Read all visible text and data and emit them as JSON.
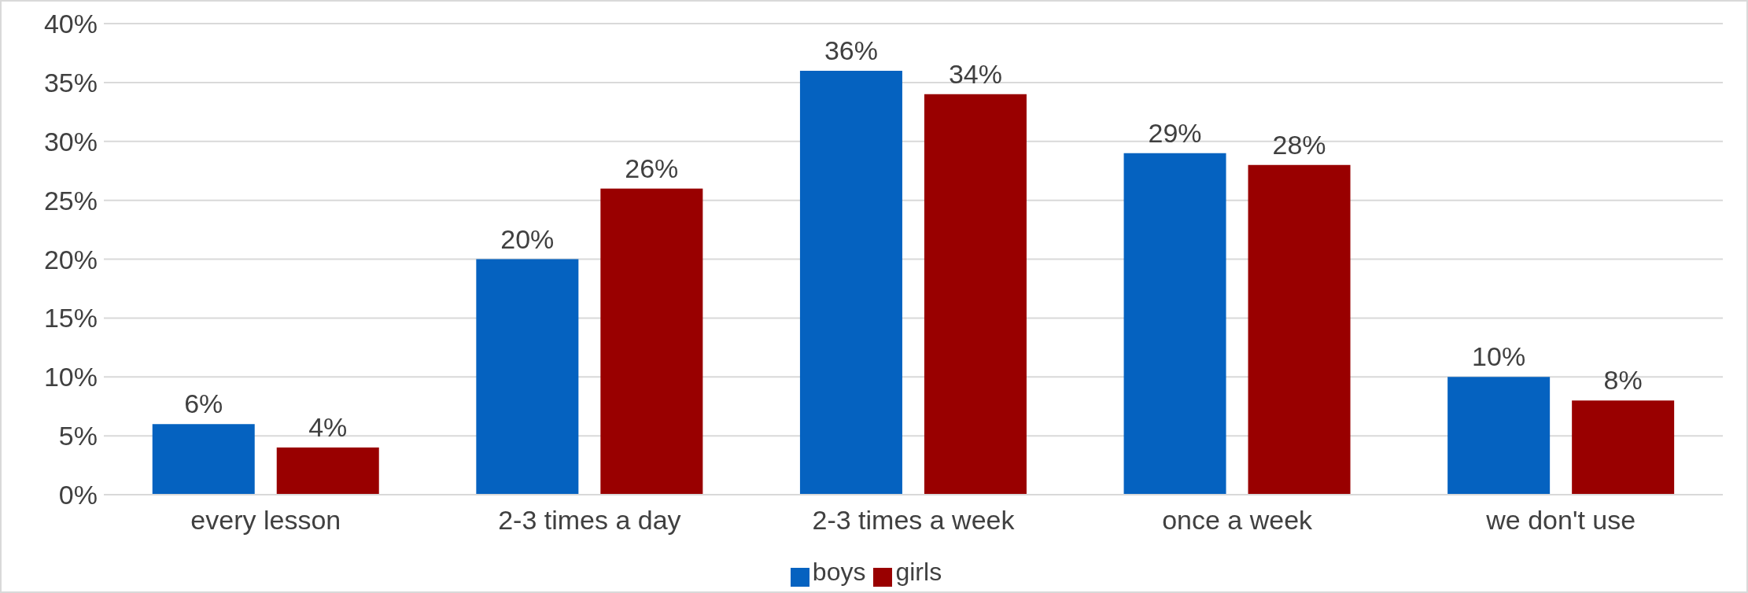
{
  "chart_data": {
    "type": "bar",
    "categories": [
      "every lesson",
      "2-3 times a day",
      "2-3 times a week",
      "once a week",
      "we don't use"
    ],
    "series": [
      {
        "name": "boys",
        "color": "#0562c0",
        "values": [
          6,
          20,
          36,
          29,
          10
        ],
        "value_labels": [
          "6%",
          "20%",
          "36%",
          "29%",
          "10%"
        ]
      },
      {
        "name": "girls",
        "color": "#990000",
        "values": [
          4,
          26,
          34,
          28,
          8
        ],
        "value_labels": [
          "4%",
          "26%",
          "34%",
          "28%",
          "8%"
        ]
      }
    ],
    "ylim": [
      0,
      40
    ],
    "yticks": [
      {
        "value": 0,
        "label": "0%"
      },
      {
        "value": 5,
        "label": "5%"
      },
      {
        "value": 10,
        "label": "10%"
      },
      {
        "value": 15,
        "label": "15%"
      },
      {
        "value": 20,
        "label": "20%"
      },
      {
        "value": 25,
        "label": "25%"
      },
      {
        "value": 30,
        "label": "30%"
      },
      {
        "value": 35,
        "label": "35%"
      },
      {
        "value": 40,
        "label": "40%"
      }
    ],
    "grid": "y",
    "legend": "bottom"
  }
}
